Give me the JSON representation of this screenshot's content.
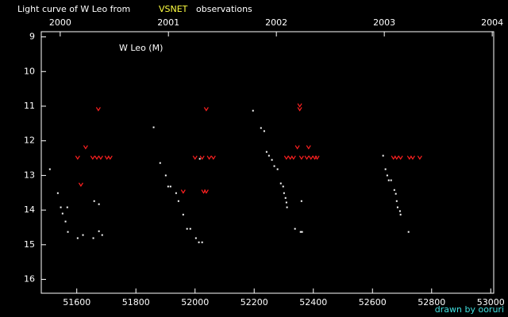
{
  "chart_data": {
    "type": "scatter",
    "title": "Light curve of W Leo from",
    "title_source": "VSNET",
    "title_suffix": "observations",
    "annotation": "W Leo (M)",
    "credit": "drawn by ooruri",
    "xlim": [
      51480,
      53010
    ],
    "xticks": [
      51600,
      51800,
      52000,
      52200,
      52400,
      52600,
      52800,
      53000
    ],
    "x2ticks": [
      {
        "value": 51544,
        "label": "2000"
      },
      {
        "value": 51910,
        "label": "2001"
      },
      {
        "value": 52275,
        "label": "2002"
      },
      {
        "value": 52640,
        "label": "2003"
      },
      {
        "value": 53005,
        "label": "2004"
      }
    ],
    "ylim": [
      16.4,
      8.85
    ],
    "yticks": [
      9,
      10,
      11,
      12,
      13,
      14,
      15,
      16
    ],
    "series": [
      {
        "color": "#ffffff",
        "marker": "dot",
        "x": [
          51509,
          51536,
          51546,
          51552,
          51568,
          51562,
          51570,
          51603,
          51621,
          51659,
          51656,
          51675,
          51675,
          51686,
          51860,
          51882,
          51901,
          51909,
          51917,
          51936,
          51944,
          51960,
          51973,
          51984,
          52003,
          52013,
          52024,
          52016,
          52196,
          52223,
          52234,
          52242,
          52250,
          52260,
          52268,
          52279,
          52290,
          52298,
          52301,
          52306,
          52309,
          52311,
          52338,
          52357,
          52362,
          52360,
          52636,
          52644,
          52650,
          52655,
          52663,
          52674,
          52679,
          52682,
          52685,
          52693,
          52695,
          52722
        ],
        "values": [
          12.82,
          13.51,
          13.92,
          14.1,
          13.92,
          14.33,
          14.63,
          14.81,
          14.72,
          13.74,
          14.81,
          13.83,
          14.61,
          14.72,
          11.61,
          12.64,
          13.0,
          13.32,
          13.32,
          13.51,
          13.74,
          14.13,
          14.54,
          14.54,
          14.81,
          14.93,
          14.93,
          12.52,
          11.13,
          11.63,
          11.72,
          12.32,
          12.43,
          12.55,
          12.73,
          12.82,
          13.23,
          13.32,
          13.51,
          13.65,
          13.78,
          13.92,
          14.54,
          14.63,
          14.63,
          13.74,
          12.43,
          12.82,
          13.0,
          13.14,
          13.14,
          13.42,
          13.53,
          13.74,
          13.92,
          14.03,
          14.13,
          14.63
        ]
      },
      {
        "color": "#ff2020",
        "marker": "v",
        "x": [
          51603,
          51614,
          51630,
          51654,
          51668,
          51673,
          51681,
          51702,
          51713,
          51960,
          52000,
          52024,
          52029,
          52038,
          52038,
          52048,
          52062,
          52309,
          52322,
          52333,
          52346,
          52354,
          52354,
          52360,
          52378,
          52384,
          52392,
          52405,
          52413,
          52671,
          52682,
          52695,
          52725,
          52736,
          52760
        ],
        "values": [
          12.48,
          13.26,
          12.18,
          12.48,
          12.48,
          11.08,
          12.48,
          12.48,
          12.48,
          13.46,
          12.48,
          12.48,
          13.46,
          13.46,
          11.08,
          12.48,
          12.48,
          12.48,
          12.48,
          12.48,
          12.18,
          10.97,
          11.08,
          12.48,
          12.48,
          12.18,
          12.48,
          12.48,
          12.48,
          12.48,
          12.48,
          12.48,
          12.48,
          12.48,
          12.48
        ]
      }
    ]
  }
}
